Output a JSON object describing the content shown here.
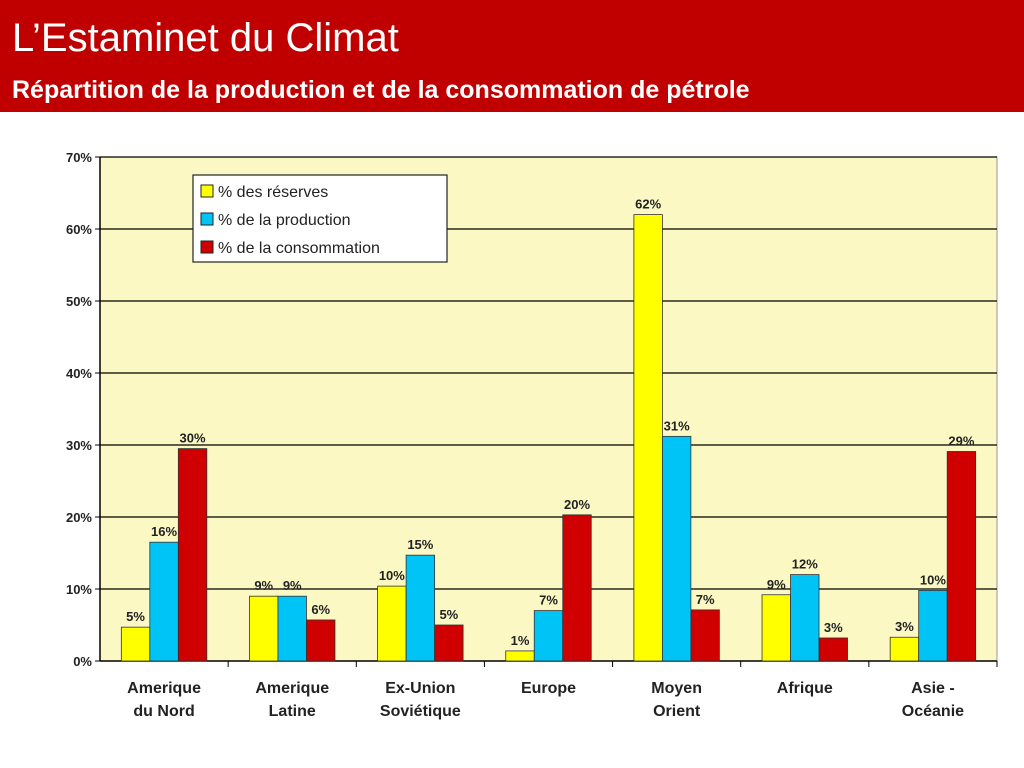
{
  "header": {
    "title": "L’Estaminet du Climat",
    "subtitle": "Répartition de la production et de la consommation de pétrole"
  },
  "colors": {
    "header_bg": "#c00000",
    "plot_bg": "#fbf8c4",
    "reserves": "#ffff00",
    "production": "#00c4f5",
    "consommation": "#d00000"
  },
  "chart_data": {
    "type": "bar",
    "title": "",
    "xlabel": "",
    "ylabel": "",
    "ylim": [
      0,
      70
    ],
    "y_ticks": [
      "0%",
      "10%",
      "20%",
      "30%",
      "40%",
      "50%",
      "60%",
      "70%"
    ],
    "y_tick_values": [
      0,
      10,
      20,
      30,
      40,
      50,
      60,
      70
    ],
    "grid": true,
    "legend_position": "top-left",
    "categories": [
      [
        "Amerique",
        "du Nord"
      ],
      [
        "Amerique",
        "Latine"
      ],
      [
        "Ex-Union",
        "Soviétique"
      ],
      [
        "Europe"
      ],
      [
        "Moyen",
        "Orient"
      ],
      [
        "Afrique"
      ],
      [
        "Asie -",
        "Océanie"
      ]
    ],
    "series": [
      {
        "name": "% des réserves",
        "color_key": "reserves",
        "values": [
          4.7,
          9,
          10.4,
          1.4,
          62,
          9.2,
          3.3
        ],
        "labels": [
          "5%",
          "9%",
          "10%",
          "1%",
          "62%",
          "9%",
          "3%"
        ]
      },
      {
        "name": "% de la production",
        "color_key": "production",
        "values": [
          16.5,
          9,
          14.7,
          7,
          31.2,
          12,
          9.8
        ],
        "labels": [
          "16%",
          "9%",
          "15%",
          "7%",
          "31%",
          "12%",
          "10%"
        ]
      },
      {
        "name": "% de la consommation",
        "color_key": "consommation",
        "values": [
          29.5,
          5.7,
          5,
          20.3,
          7.1,
          3.2,
          29.1
        ],
        "labels": [
          "30%",
          "6%",
          "5%",
          "20%",
          "7%",
          "3%",
          "29%"
        ]
      }
    ]
  }
}
